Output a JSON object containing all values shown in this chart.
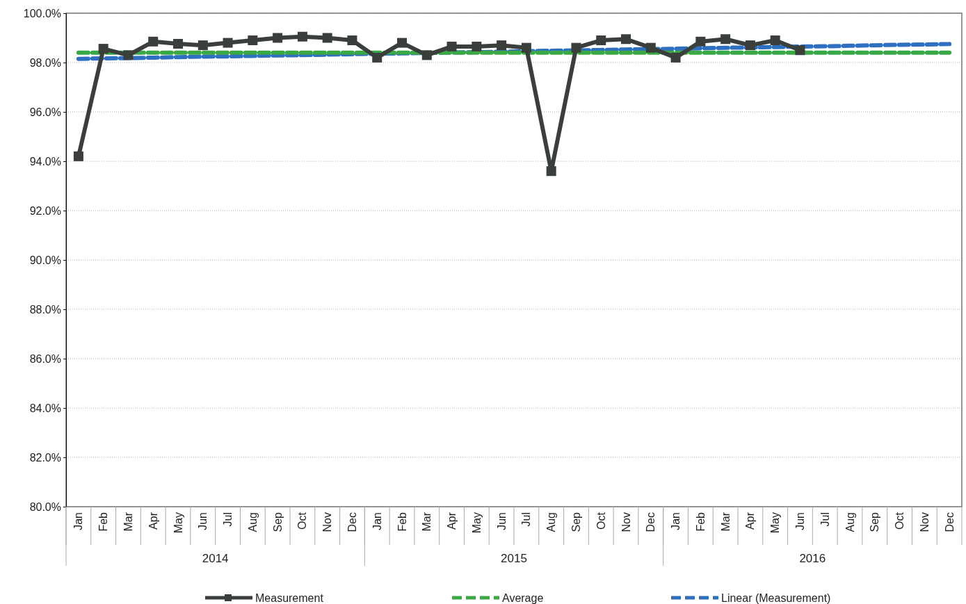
{
  "chart_data": {
    "type": "line",
    "categories": [
      "Jan",
      "Feb",
      "Mar",
      "Apr",
      "May",
      "Jun",
      "Jul",
      "Aug",
      "Sep",
      "Oct",
      "Nov",
      "Dec",
      "Jan",
      "Feb",
      "Mar",
      "Apr",
      "May",
      "Jun",
      "Jul",
      "Aug",
      "Sep",
      "Oct",
      "Nov",
      "Dec",
      "Jan",
      "Feb",
      "Mar",
      "Apr",
      "May",
      "Jun",
      "Jul",
      "Aug",
      "Sep",
      "Oct",
      "Nov",
      "Dec"
    ],
    "annotations": [
      "2014",
      "2015",
      "2016"
    ],
    "ylim": [
      80,
      100
    ],
    "yticks": [
      {
        "value": 80,
        "label": "80.0%"
      },
      {
        "value": 82,
        "label": "82.0%"
      },
      {
        "value": 84,
        "label": "84.0%"
      },
      {
        "value": 86,
        "label": "86.0%"
      },
      {
        "value": 88,
        "label": "88.0%"
      },
      {
        "value": 90,
        "label": "90.0%"
      },
      {
        "value": 92,
        "label": "92.0%"
      },
      {
        "value": 94,
        "label": "94.0%"
      },
      {
        "value": 96,
        "label": "96.0%"
      },
      {
        "value": 98,
        "label": "98.0%"
      },
      {
        "value": 100,
        "label": "100.0%"
      }
    ],
    "grid": "y",
    "legend": "bottom",
    "series": [
      {
        "name": "Measurement",
        "color": "#3a3f3c",
        "marker": "square",
        "line_style": "solid",
        "values": [
          94.2,
          98.56,
          98.3,
          98.85,
          98.76,
          98.7,
          98.8,
          98.9,
          99.0,
          99.05,
          99.0,
          98.9,
          98.2,
          98.8,
          98.3,
          98.65,
          98.65,
          98.7,
          98.6,
          93.6,
          98.6,
          98.9,
          98.95,
          98.6,
          98.2,
          98.85,
          98.95,
          98.7,
          98.9,
          98.5,
          null,
          null,
          null,
          null,
          null,
          null
        ]
      },
      {
        "name": "Average",
        "color": "#3aa844",
        "marker": "none",
        "line_style": "dashed",
        "values": [
          98.4,
          98.4,
          98.4,
          98.4,
          98.4,
          98.4,
          98.4,
          98.4,
          98.4,
          98.4,
          98.4,
          98.4,
          98.4,
          98.4,
          98.4,
          98.4,
          98.4,
          98.4,
          98.4,
          98.4,
          98.4,
          98.4,
          98.4,
          98.4,
          98.4,
          98.4,
          98.4,
          98.4,
          98.4,
          98.4,
          98.4,
          98.4,
          98.4,
          98.4,
          98.4,
          98.4
        ]
      },
      {
        "name": "Linear (Measurement)",
        "color": "#2e6fc0",
        "marker": "none",
        "line_style": "dashed",
        "values": [
          98.15,
          98.17,
          98.18,
          98.2,
          98.22,
          98.24,
          98.25,
          98.27,
          98.29,
          98.3,
          98.32,
          98.34,
          98.36,
          98.37,
          98.39,
          98.41,
          98.42,
          98.44,
          98.46,
          98.48,
          98.49,
          98.51,
          98.53,
          98.54,
          98.56,
          98.58,
          98.6,
          98.61,
          98.63,
          98.65,
          98.66,
          98.68,
          98.7,
          98.72,
          98.73,
          98.75
        ]
      }
    ]
  }
}
